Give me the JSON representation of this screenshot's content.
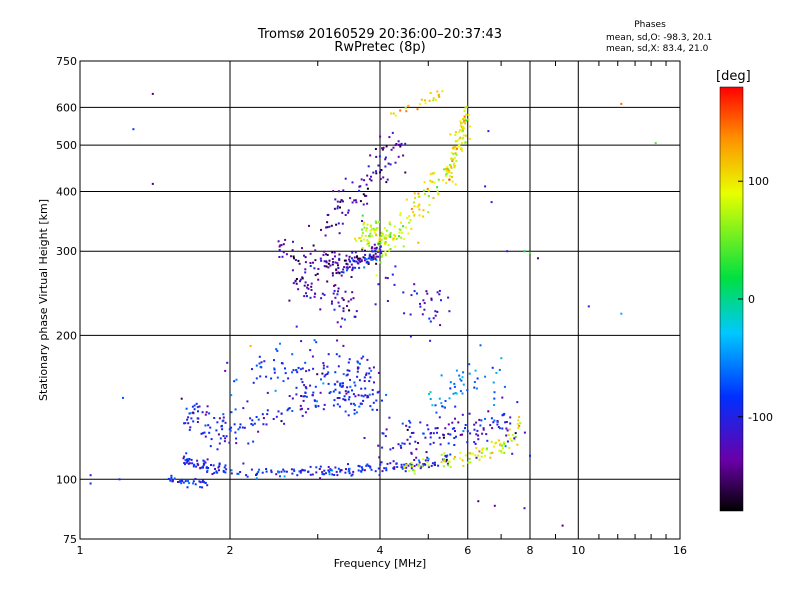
{
  "title": "Tromsø 20160529 20:36:00–20:37:43",
  "subtitle": "RwPretec (8p)",
  "phases": {
    "header": "Phases",
    "o_stats": "mean, sd,O: -98.3, 20.1",
    "x_stats": "mean, sd,X: 83.4, 21.0"
  },
  "colorbar": {
    "unit": "[deg]",
    "min": -180,
    "max": 180,
    "ticks": [
      {
        "value": 100,
        "label": "100"
      },
      {
        "value": 0,
        "label": "0"
      },
      {
        "value": -100,
        "label": "-100"
      }
    ]
  },
  "chart_data": {
    "type": "scatter",
    "xlabel": "Frequency [MHz]",
    "ylabel": "Stationary phase Virtual Height [km]",
    "x_scale": "log",
    "y_scale": "log",
    "xlim": [
      1,
      16
    ],
    "ylim": [
      75,
      750
    ],
    "grid": true,
    "xticks": [
      {
        "value": 1,
        "label": "1"
      },
      {
        "value": 2,
        "label": "2"
      },
      {
        "value": 4,
        "label": "4"
      },
      {
        "value": 6,
        "label": "6"
      },
      {
        "value": 8,
        "label": "8"
      },
      {
        "value": 10,
        "label": "10"
      },
      {
        "value": 16,
        "label": "16"
      }
    ],
    "yticks": [
      {
        "value": 75,
        "label": "75"
      },
      {
        "value": 100,
        "label": "100"
      },
      {
        "value": 200,
        "label": "200"
      },
      {
        "value": 300,
        "label": "300"
      },
      {
        "value": 400,
        "label": "400"
      },
      {
        "value": 500,
        "label": "500"
      },
      {
        "value": 600,
        "label": "600"
      },
      {
        "value": 750,
        "label": "750"
      }
    ],
    "traces": [
      {
        "f": [
          1.6,
          1.7,
          1.8,
          2.0,
          2.3,
          2.7,
          3.0,
          3.4,
          3.8,
          4.2,
          4.6,
          5.0,
          5.5
        ],
        "h": [
          110,
          108,
          106,
          105,
          104,
          104,
          104,
          104,
          105,
          106,
          107,
          108,
          110
        ],
        "phase": -95,
        "spread": 0.015,
        "count": 220
      },
      {
        "f": [
          1.5,
          1.6,
          1.72,
          1.8
        ],
        "h": [
          100,
          99,
          98,
          98
        ],
        "phase": -90,
        "spread": 0.01,
        "count": 35
      },
      {
        "f": [
          4.5,
          5.0,
          5.5,
          6.0,
          6.5,
          7.0,
          7.5,
          7.8
        ],
        "h": [
          106,
          107,
          109,
          111,
          114,
          118,
          124,
          132
        ],
        "phase": 85,
        "spread": 0.02,
        "count": 90
      },
      {
        "f": [
          1.62,
          1.75,
          1.9,
          2.0,
          2.2,
          2.5,
          2.8,
          3.2,
          3.6,
          4.0
        ],
        "h": [
          135,
          132,
          128,
          126,
          132,
          140,
          148,
          152,
          150,
          148
        ],
        "phase": -100,
        "spread": 0.05,
        "count": 200
      },
      {
        "f": [
          2.0,
          2.4,
          2.8,
          3.2,
          3.6,
          4.0
        ],
        "h": [
          160,
          168,
          172,
          168,
          164,
          160
        ],
        "phase": -95,
        "spread": 0.07,
        "count": 120
      },
      {
        "f": [
          4.0,
          4.5,
          5.0,
          5.5,
          6.0,
          6.5,
          7.0,
          7.5
        ],
        "h": [
          120,
          122,
          124,
          125,
          126,
          128,
          130,
          132
        ],
        "phase": -110,
        "spread": 0.05,
        "count": 130
      },
      {
        "f": [
          5.0,
          5.5,
          6.0,
          6.5,
          7.0
        ],
        "h": [
          140,
          150,
          158,
          162,
          165
        ],
        "phase": -60,
        "spread": 0.06,
        "count": 50
      },
      {
        "f": [
          2.5,
          2.8,
          3.1,
          3.4,
          3.7,
          4.0
        ],
        "h": [
          300,
          292,
          288,
          285,
          290,
          300
        ],
        "phase": -140,
        "spread": 0.03,
        "count": 110
      },
      {
        "f": [
          3.2,
          3.5,
          3.8,
          4.0
        ],
        "h": [
          270,
          278,
          288,
          300
        ],
        "phase": -105,
        "spread": 0.015,
        "count": 50
      },
      {
        "f": [
          2.7,
          2.9,
          3.1,
          3.3,
          3.5
        ],
        "h": [
          260,
          250,
          240,
          235,
          230
        ],
        "phase": -135,
        "spread": 0.05,
        "count": 70
      },
      {
        "f": [
          3.0,
          3.3,
          3.6,
          3.9,
          4.2,
          4.5
        ],
        "h": [
          320,
          360,
          400,
          440,
          470,
          500
        ],
        "phase": -130,
        "spread": 0.06,
        "count": 100
      },
      {
        "f": [
          3.6,
          3.8,
          4.0,
          4.2
        ],
        "h": [
          320,
          330,
          325,
          320
        ],
        "phase": 80,
        "spread": 0.03,
        "count": 70
      },
      {
        "f": [
          4.0,
          4.3,
          4.7,
          5.0,
          5.5,
          6.0
        ],
        "h": [
          300,
          330,
          360,
          400,
          450,
          560
        ],
        "phase": 90,
        "spread": 0.05,
        "count": 120
      },
      {
        "f": [
          5.4,
          5.6,
          5.8,
          6.0
        ],
        "h": [
          420,
          470,
          520,
          590
        ],
        "phase": 100,
        "spread": 0.025,
        "count": 60
      },
      {
        "f": [
          4.2,
          4.6,
          5.0,
          5.3
        ],
        "h": [
          580,
          600,
          620,
          640
        ],
        "phase": 105,
        "spread": 0.02,
        "count": 25
      },
      {
        "f": [
          4.0,
          4.5,
          5.0,
          5.5
        ],
        "h": [
          250,
          240,
          230,
          225
        ],
        "phase": -120,
        "spread": 0.07,
        "count": 40
      }
    ],
    "scattered_points": [
      {
        "f": 1.28,
        "h": 540,
        "phase": -80
      },
      {
        "f": 1.4,
        "h": 640,
        "phase": -150
      },
      {
        "f": 1.4,
        "h": 415,
        "phase": -150
      },
      {
        "f": 1.05,
        "h": 98,
        "phase": -90
      },
      {
        "f": 1.05,
        "h": 102,
        "phase": -100
      },
      {
        "f": 1.2,
        "h": 100,
        "phase": -90
      },
      {
        "f": 1.22,
        "h": 148,
        "phase": -70
      },
      {
        "f": 7.8,
        "h": 300,
        "phase": 20
      },
      {
        "f": 8.0,
        "h": 298,
        "phase": 40
      },
      {
        "f": 8.3,
        "h": 290,
        "phase": -150
      },
      {
        "f": 7.2,
        "h": 300,
        "phase": -100
      },
      {
        "f": 8.0,
        "h": 112,
        "phase": -90
      },
      {
        "f": 9.3,
        "h": 80,
        "phase": -150
      },
      {
        "f": 12.2,
        "h": 610,
        "phase": 150
      },
      {
        "f": 14.3,
        "h": 505,
        "phase": 40
      },
      {
        "f": 12.2,
        "h": 222,
        "phase": -40
      },
      {
        "f": 10.5,
        "h": 230,
        "phase": -100
      },
      {
        "f": 6.3,
        "h": 90,
        "phase": -150
      },
      {
        "f": 6.8,
        "h": 88,
        "phase": -140
      },
      {
        "f": 7.8,
        "h": 87,
        "phase": -120
      },
      {
        "f": 2.2,
        "h": 190,
        "phase": 120
      },
      {
        "f": 6.6,
        "h": 535,
        "phase": -100
      },
      {
        "f": 6.7,
        "h": 380,
        "phase": -100
      },
      {
        "f": 6.5,
        "h": 410,
        "phase": -110
      }
    ]
  }
}
